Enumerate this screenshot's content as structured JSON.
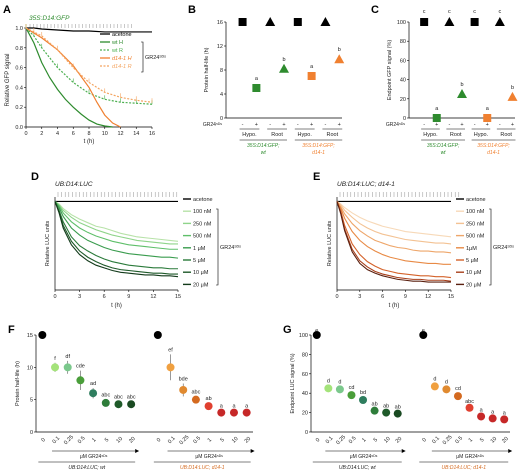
{
  "chart_data": [
    {
      "panel": "A",
      "type": "line",
      "title": "35S:D14:GFP",
      "xlabel": "t (h)",
      "ylabel": "Relative GFP signal",
      "xlim": [
        0,
        16
      ],
      "ylim": [
        0,
        1.0
      ],
      "xticks": [
        0,
        2,
        4,
        6,
        8,
        10,
        12,
        14,
        16
      ],
      "yticks": [
        0,
        0.2,
        0.4,
        0.6,
        0.8,
        1.0
      ],
      "legend_group_label": "GR24⁵ᴰˢ",
      "series": [
        {
          "name": "acetone",
          "color": "#000000",
          "dashed": false,
          "x": [
            0,
            1,
            2,
            4,
            6,
            8,
            10,
            12,
            14,
            16
          ],
          "y": [
            1.0,
            1.0,
            0.99,
            0.98,
            0.97,
            0.97,
            0.96,
            0.96,
            0.96,
            0.96
          ]
        },
        {
          "name": "wt H",
          "color": "#2e8b2e",
          "dashed": false,
          "x": [
            0,
            1,
            2,
            3,
            4,
            5,
            6,
            7,
            8,
            9,
            10,
            11
          ],
          "y": [
            1.0,
            0.85,
            0.65,
            0.5,
            0.38,
            0.28,
            0.2,
            0.13,
            0.07,
            0.03,
            0.01,
            0.0
          ]
        },
        {
          "name": "wt R",
          "color": "#4caf50",
          "dashed": true,
          "x": [
            0,
            1,
            2,
            4,
            6,
            8,
            10,
            12,
            14,
            16
          ],
          "y": [
            1.0,
            0.92,
            0.8,
            0.6,
            0.45,
            0.34,
            0.28,
            0.25,
            0.24,
            0.23
          ]
        },
        {
          "name": "d14-1 H",
          "color": "#f08030",
          "dashed": false,
          "x": [
            0,
            1,
            2,
            4,
            6,
            8,
            9,
            10,
            11,
            12
          ],
          "y": [
            1.0,
            0.95,
            0.9,
            0.78,
            0.62,
            0.4,
            0.25,
            0.12,
            0.04,
            0.0
          ]
        },
        {
          "name": "d14-1 R",
          "color": "#f4a460",
          "dashed": true,
          "x": [
            0,
            1,
            2,
            4,
            6,
            8,
            10,
            12,
            14,
            16
          ],
          "y": [
            1.0,
            0.96,
            0.92,
            0.78,
            0.6,
            0.45,
            0.35,
            0.3,
            0.27,
            0.25
          ]
        }
      ]
    },
    {
      "panel": "B",
      "type": "scatter",
      "ylabel": "Protein half-life (h)",
      "ylim": [
        0,
        16
      ],
      "yticks": [
        0,
        4,
        8,
        12,
        16
      ],
      "row_label": "GR24⁵ᴰˢ",
      "signs": [
        "-",
        "+",
        "-",
        "+",
        "-",
        "+",
        "-",
        "+"
      ],
      "tissues": [
        "Hypo.",
        "Root",
        "Hypo.",
        "Root"
      ],
      "groups": [
        {
          "line1": "35S:D14:GFP;",
          "line2": "wt",
          "color": "#2e8b2e"
        },
        {
          "line1": "35S:D14:GFP;",
          "line2": "d14-1",
          "color": "#f08030"
        }
      ],
      "points": [
        {
          "x": 1,
          "y": 16,
          "marker": "square",
          "color": "#000000",
          "letter": ""
        },
        {
          "x": 2,
          "y": 5,
          "marker": "square",
          "color": "#2e8b2e",
          "letter": "a"
        },
        {
          "x": 3,
          "y": 16,
          "marker": "triangle",
          "color": "#000000",
          "letter": ""
        },
        {
          "x": 4,
          "y": 8.2,
          "marker": "triangle",
          "color": "#2e8b2e",
          "letter": "b"
        },
        {
          "x": 5,
          "y": 16,
          "marker": "square",
          "color": "#000000",
          "letter": ""
        },
        {
          "x": 6,
          "y": 7,
          "marker": "square",
          "color": "#f08030",
          "letter": "a"
        },
        {
          "x": 7,
          "y": 16,
          "marker": "triangle",
          "color": "#000000",
          "letter": ""
        },
        {
          "x": 8,
          "y": 9.8,
          "marker": "triangle",
          "color": "#f08030",
          "letter": "b"
        }
      ]
    },
    {
      "panel": "C",
      "type": "scatter",
      "ylabel": "Endpoint GFP signal (%)",
      "ylim": [
        0,
        100
      ],
      "yticks": [
        0,
        20,
        40,
        60,
        80,
        100
      ],
      "row_label": "GR24⁵ᴰˢ",
      "signs": [
        "-",
        "+",
        "-",
        "+",
        "-",
        "+",
        "-",
        "+"
      ],
      "tissues": [
        "Hypo.",
        "Root",
        "Hypo.",
        "Root"
      ],
      "groups": [
        {
          "line1": "35S:D14:GFP;",
          "line2": "wt",
          "color": "#2e8b2e"
        },
        {
          "line1": "35S:D14:GFP;",
          "line2": "d14-1",
          "color": "#f08030"
        }
      ],
      "points": [
        {
          "x": 1,
          "y": 100,
          "marker": "square",
          "color": "#000000",
          "letter": "c"
        },
        {
          "x": 2,
          "y": 0,
          "marker": "square",
          "color": "#2e8b2e",
          "letter": "a"
        },
        {
          "x": 3,
          "y": 100,
          "marker": "triangle",
          "color": "#000000",
          "letter": "c"
        },
        {
          "x": 4,
          "y": 25,
          "marker": "triangle",
          "color": "#2e8b2e",
          "letter": "b"
        },
        {
          "x": 5,
          "y": 100,
          "marker": "square",
          "color": "#000000",
          "letter": "c"
        },
        {
          "x": 6,
          "y": 0,
          "marker": "square",
          "color": "#f08030",
          "letter": "a"
        },
        {
          "x": 7,
          "y": 100,
          "marker": "triangle",
          "color": "#000000",
          "letter": "c"
        },
        {
          "x": 8,
          "y": 22,
          "marker": "triangle",
          "color": "#f08030",
          "letter": "b"
        }
      ]
    },
    {
      "panel": "D",
      "type": "line",
      "title": "UB:D14:LUC",
      "xlabel": "t (h)",
      "ylabel": "Relative LUC units",
      "xlim": [
        0,
        15
      ],
      "ylim": [
        0,
        1.05
      ],
      "xticks": [
        0,
        3,
        6,
        9,
        12,
        15
      ],
      "legend_group_label": "GR24⁵ᴰˢ",
      "x": [
        0,
        0.5,
        1,
        2,
        3,
        4,
        5,
        6,
        7,
        8,
        9,
        10,
        11,
        12,
        13,
        14,
        15
      ],
      "series": [
        {
          "name": "acetone",
          "color": "#000000",
          "y": [
            1,
            1,
            1,
            1,
            1,
            1,
            1,
            1,
            1,
            1,
            1,
            1,
            1,
            1,
            1,
            1,
            1
          ]
        },
        {
          "name": "100 nM",
          "color": "#b7e2a8",
          "y": [
            1,
            0.97,
            0.92,
            0.85,
            0.8,
            0.76,
            0.72,
            0.7,
            0.67,
            0.64,
            0.62,
            0.6,
            0.59,
            0.58,
            0.57,
            0.56,
            0.55
          ]
        },
        {
          "name": "250 nM",
          "color": "#8fd48a",
          "y": [
            1,
            0.96,
            0.9,
            0.82,
            0.76,
            0.72,
            0.68,
            0.65,
            0.62,
            0.6,
            0.58,
            0.56,
            0.55,
            0.54,
            0.53,
            0.52,
            0.52
          ]
        },
        {
          "name": "500 nM",
          "color": "#5fbf6a",
          "y": [
            1,
            0.95,
            0.87,
            0.77,
            0.7,
            0.65,
            0.61,
            0.58,
            0.55,
            0.53,
            0.51,
            0.5,
            0.49,
            0.48,
            0.47,
            0.46,
            0.46
          ]
        },
        {
          "name": "1 μM",
          "color": "#3a9c4e",
          "y": [
            1,
            0.93,
            0.83,
            0.7,
            0.62,
            0.56,
            0.52,
            0.48,
            0.45,
            0.43,
            0.41,
            0.4,
            0.39,
            0.38,
            0.37,
            0.37,
            0.36
          ]
        },
        {
          "name": "5 μM",
          "color": "#2a7a3a",
          "y": [
            1,
            0.9,
            0.77,
            0.6,
            0.5,
            0.44,
            0.39,
            0.35,
            0.32,
            0.3,
            0.28,
            0.27,
            0.26,
            0.25,
            0.25,
            0.24,
            0.24
          ]
        },
        {
          "name": "10 μM",
          "color": "#1f5a2a",
          "y": [
            1,
            0.88,
            0.73,
            0.55,
            0.44,
            0.37,
            0.32,
            0.28,
            0.25,
            0.23,
            0.22,
            0.21,
            0.2,
            0.19,
            0.19,
            0.18,
            0.18
          ]
        },
        {
          "name": "20 μM",
          "color": "#123a1a",
          "y": [
            1,
            0.87,
            0.7,
            0.51,
            0.4,
            0.33,
            0.28,
            0.25,
            0.22,
            0.2,
            0.19,
            0.18,
            0.17,
            0.17,
            0.16,
            0.16,
            0.15
          ]
        }
      ]
    },
    {
      "panel": "E",
      "type": "line",
      "title": "UB:D14:LUC; d14-1",
      "xlabel": "t (h)",
      "ylabel": "Relative LUC units",
      "xlim": [
        0,
        15
      ],
      "ylim": [
        0,
        1.05
      ],
      "xticks": [
        0,
        3,
        6,
        9,
        12,
        15
      ],
      "legend_group_label": "GR24⁵ᴰˢ",
      "x": [
        0,
        0.5,
        1,
        2,
        3,
        4,
        5,
        6,
        7,
        8,
        9,
        10,
        11,
        12,
        13,
        14,
        15
      ],
      "series": [
        {
          "name": "acetone",
          "color": "#000000",
          "y": [
            1,
            1,
            1,
            1,
            1,
            1,
            1,
            1,
            1,
            1,
            1,
            1,
            1,
            1,
            1,
            1,
            1
          ]
        },
        {
          "name": "100 nM",
          "color": "#f7d9b8",
          "y": [
            1,
            0.97,
            0.93,
            0.87,
            0.82,
            0.78,
            0.75,
            0.72,
            0.7,
            0.68,
            0.66,
            0.65,
            0.64,
            0.63,
            0.62,
            0.61,
            0.6
          ]
        },
        {
          "name": "250 nM",
          "color": "#f3c293",
          "y": [
            1,
            0.96,
            0.9,
            0.82,
            0.75,
            0.7,
            0.66,
            0.63,
            0.61,
            0.59,
            0.57,
            0.56,
            0.55,
            0.54,
            0.53,
            0.53,
            0.52
          ]
        },
        {
          "name": "500 nM",
          "color": "#eea66a",
          "y": [
            1,
            0.94,
            0.86,
            0.75,
            0.67,
            0.61,
            0.56,
            0.53,
            0.5,
            0.48,
            0.47,
            0.45,
            0.44,
            0.44,
            0.43,
            0.43,
            0.42
          ]
        },
        {
          "name": "1μM",
          "color": "#e88a45",
          "y": [
            1,
            0.92,
            0.81,
            0.66,
            0.56,
            0.49,
            0.44,
            0.4,
            0.37,
            0.35,
            0.33,
            0.32,
            0.31,
            0.3,
            0.3,
            0.29,
            0.29
          ]
        },
        {
          "name": "5 μM",
          "color": "#d4622a",
          "y": [
            1,
            0.89,
            0.73,
            0.52,
            0.4,
            0.32,
            0.27,
            0.23,
            0.21,
            0.19,
            0.18,
            0.17,
            0.16,
            0.16,
            0.15,
            0.15,
            0.14
          ]
        },
        {
          "name": "10 μM",
          "color": "#a8401c",
          "y": [
            1,
            0.87,
            0.69,
            0.46,
            0.33,
            0.26,
            0.21,
            0.18,
            0.16,
            0.14,
            0.13,
            0.12,
            0.12,
            0.11,
            0.11,
            0.11,
            0.1
          ]
        },
        {
          "name": "20 μM",
          "color": "#5a2010",
          "y": [
            1,
            0.86,
            0.67,
            0.43,
            0.3,
            0.23,
            0.19,
            0.16,
            0.14,
            0.12,
            0.11,
            0.1,
            0.1,
            0.09,
            0.09,
            0.09,
            0.09
          ]
        }
      ]
    },
    {
      "panel": "F",
      "type": "scatter",
      "ylabel": "Protein half-life (h)",
      "ylim": [
        0,
        15
      ],
      "yticks": [
        0,
        5,
        10,
        15
      ],
      "conc_axis_label": "μM GR24⁵ᴰˢ",
      "groups": [
        {
          "name": "UB:D14:LUC; wt",
          "categories": [
            "0",
            "0.1",
            "0.25",
            "0.5",
            "1",
            "5",
            "10",
            "20"
          ],
          "values": [
            15,
            10,
            10,
            8,
            6,
            4.5,
            4.3,
            4.3
          ],
          "errors": [
            0,
            0.7,
            1.0,
            1.5,
            0.8,
            0.5,
            0.4,
            0.4
          ],
          "letters": [
            "",
            "f",
            "df",
            "cde",
            "ad",
            "abc",
            "abc",
            "abc"
          ],
          "colors": [
            "#000000",
            "#a4e37a",
            "#7bc88c",
            "#4a9e3a",
            "#2e7d5e",
            "#2e7d3a",
            "#1f5a2a",
            "#1a4a22"
          ]
        },
        {
          "name": "UB:D14:LUC; d14-1",
          "categories": [
            "0",
            "0.1",
            "0.25",
            "0.5",
            "1",
            "5",
            "10",
            "20"
          ],
          "values": [
            15,
            10,
            6.5,
            5,
            4,
            3,
            3,
            3
          ],
          "errors": [
            0,
            2.0,
            1.0,
            0.5,
            0.5,
            0.3,
            0.3,
            0.3
          ],
          "letters": [
            "",
            "ef",
            "bde",
            "abc",
            "ab",
            "a",
            "a",
            "a"
          ],
          "colors": [
            "#000000",
            "#f0a040",
            "#e08a30",
            "#d46a20",
            "#e04030",
            "#c62828",
            "#c62828",
            "#c62828"
          ]
        }
      ]
    },
    {
      "panel": "G",
      "type": "scatter",
      "ylabel": "Endpoint LUC signal (%)",
      "ylim": [
        0,
        100
      ],
      "yticks": [
        0,
        20,
        40,
        60,
        80,
        100
      ],
      "conc_axis_label": "μM GR24⁵ᴰˢ",
      "groups": [
        {
          "name": "UB:D14:LUC; wt",
          "categories": [
            "0",
            "0.1",
            "0.25",
            "0.5",
            "1",
            "5",
            "10",
            "20"
          ],
          "values": [
            100,
            45,
            44,
            38,
            33,
            22,
            20,
            19
          ],
          "errors": [
            0,
            3,
            3,
            3,
            3,
            2,
            2,
            2
          ],
          "letters": [
            "e",
            "d",
            "d",
            "cd",
            "bd",
            "ab",
            "ab",
            "ab"
          ],
          "colors": [
            "#000000",
            "#a4e37a",
            "#7bc88c",
            "#4a9e3a",
            "#2e7d5e",
            "#2e7d3a",
            "#1f5a2a",
            "#1a4a22"
          ]
        },
        {
          "name": "UB:D14:LUC; d14-1",
          "categories": [
            "0",
            "0.1",
            "0.25",
            "0.5",
            "1",
            "5",
            "10",
            "20"
          ],
          "values": [
            100,
            47,
            44,
            37,
            25,
            16,
            14,
            13
          ],
          "errors": [
            0,
            3,
            3,
            3,
            2,
            2,
            2,
            2
          ],
          "letters": [
            "e",
            "d",
            "d",
            "cd",
            "abc",
            "a",
            "a",
            "a"
          ],
          "colors": [
            "#000000",
            "#f0a040",
            "#e08a30",
            "#d46a20",
            "#e04030",
            "#c62828",
            "#c62828",
            "#c62828"
          ]
        }
      ]
    }
  ]
}
